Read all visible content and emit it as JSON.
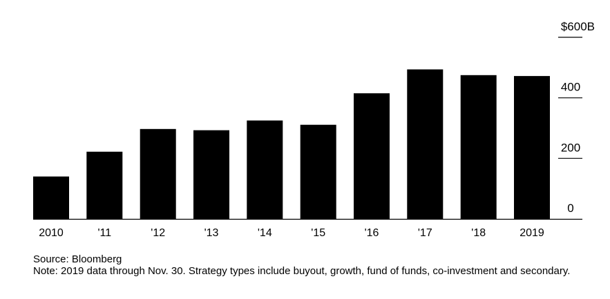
{
  "chart_data": {
    "type": "bar",
    "categories": [
      "2010",
      "'11",
      "'12",
      "'13",
      "'14",
      "'15",
      "'16",
      "'17",
      "'18",
      "2019"
    ],
    "values": [
      140,
      222,
      297,
      293,
      325,
      311,
      415,
      494,
      475,
      472
    ],
    "ylim": [
      0,
      600
    ],
    "yticks": [
      0,
      200,
      400,
      600
    ],
    "ytick_labels": [
      "0",
      "200",
      "400",
      "$600B"
    ],
    "grid": false,
    "bar_color": "#000000",
    "axis_color": "#000000"
  },
  "footer": {
    "source": "Source: Bloomberg",
    "note": "Note: 2019 data through Nov. 30. Strategy types include buyout, growth, fund of funds, co-investment and secondary."
  }
}
